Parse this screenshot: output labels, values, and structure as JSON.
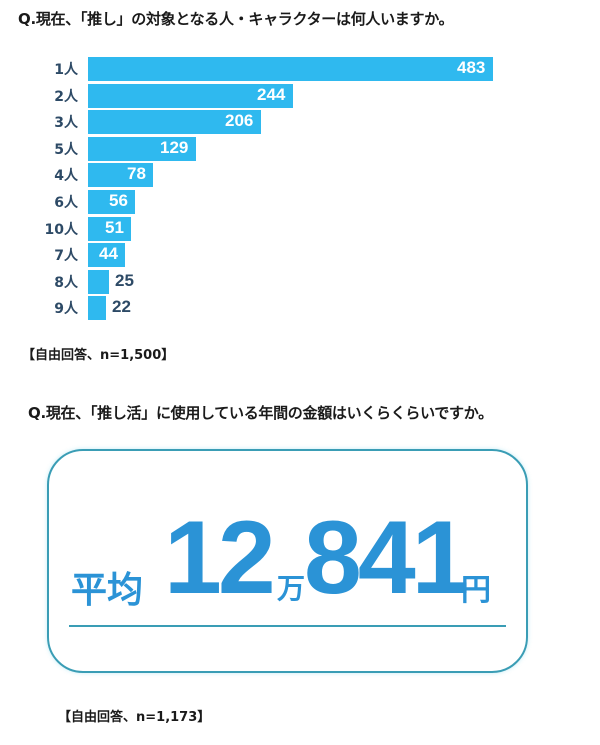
{
  "q1": {
    "title": "Q.現在、「推し」の対象となる人・キャラクターは何人いますか。",
    "note": "【自由回答、n=1,500】"
  },
  "q2": {
    "title": "Q.現在、「推し活」に使用している年間の金額はいくらくらいですか。",
    "avg_label": "平均",
    "avg_num_man": "12",
    "avg_man_unit": "万",
    "avg_num_rest": "841",
    "avg_yen_unit": "円",
    "note": "【自由回答、n=1,173】"
  },
  "colors": {
    "bar": "#2fb9ef",
    "category_text": "#2d4a66",
    "highlight_text": "#2b93d6",
    "box_border": "#3a9db5"
  },
  "chart_data": [
    {
      "type": "bar",
      "orientation": "horizontal",
      "title": "Q.現在、「推し」の対象となる人・キャラクターは何人いますか。",
      "categories": [
        "1人",
        "2人",
        "3人",
        "5人",
        "4人",
        "6人",
        "10人",
        "7人",
        "8人",
        "9人"
      ],
      "values": [
        483,
        244,
        206,
        129,
        78,
        56,
        51,
        44,
        25,
        22
      ],
      "value_labels": [
        "483",
        "244",
        "206",
        "129",
        "78",
        "56",
        "51",
        "44",
        "25",
        "22"
      ],
      "xlabel": "",
      "ylabel": "",
      "grid": false,
      "legend": null,
      "annotation": "【自由回答、n=1,500】"
    },
    {
      "type": "table",
      "title": "Q.現在、「推し活」に使用している年間の金額はいくらくらいですか。",
      "label": "平均",
      "value": 120841,
      "display": "平均 12万841円",
      "annotation": "【自由回答、n=1,173】"
    }
  ]
}
